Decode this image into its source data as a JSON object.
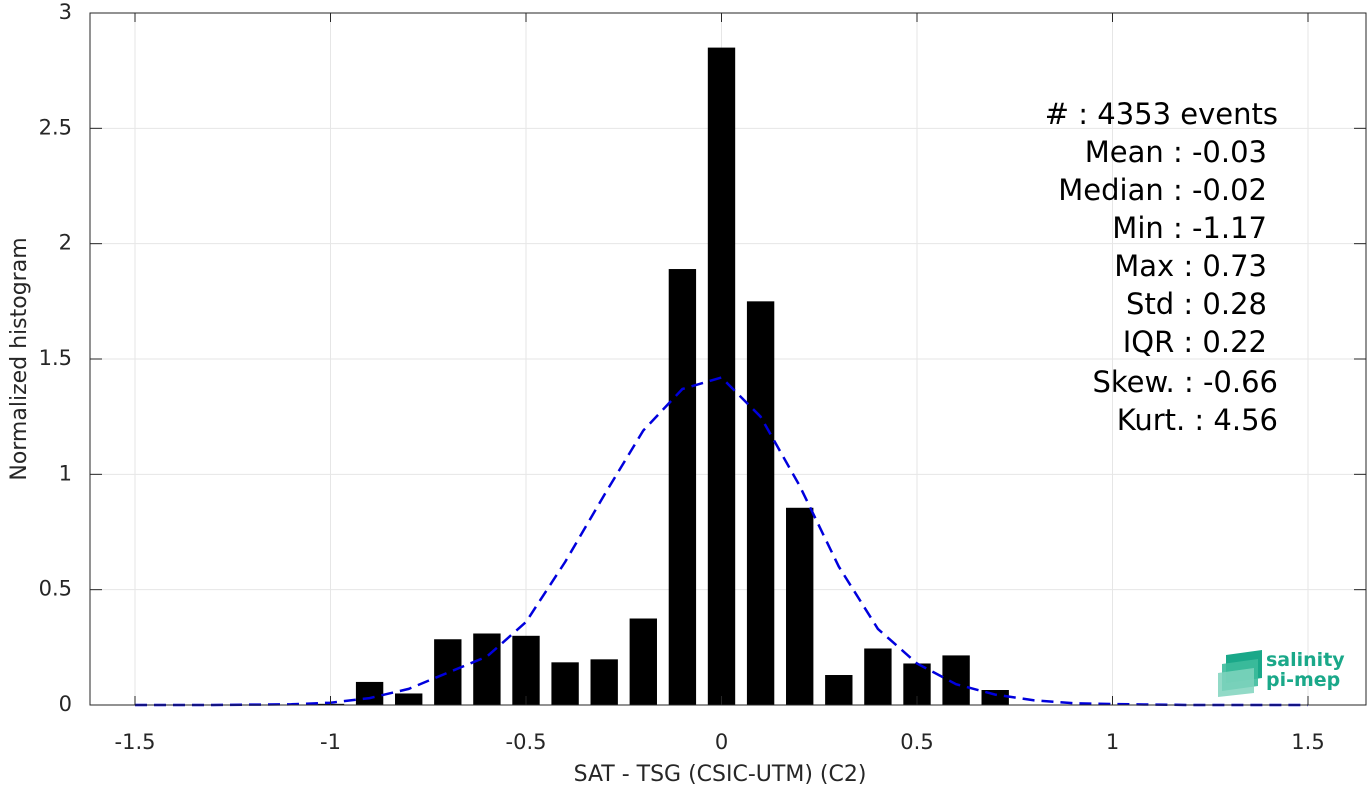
{
  "chart_data": {
    "type": "bar",
    "title": "",
    "xlabel": "SAT - TSG (CSIC-UTM) (C2)",
    "ylabel": "Normalized histogram",
    "xlim": [
      -1.5,
      1.5
    ],
    "ylim": [
      0,
      3
    ],
    "xticks": [
      "-1.5",
      "-1",
      "-0.5",
      "0",
      "0.5",
      "1",
      "1.5"
    ],
    "yticks": [
      "0",
      "0.5",
      "1",
      "1.5",
      "2",
      "2.5",
      "3"
    ],
    "grid": true,
    "bar_width": 0.07,
    "bars": {
      "x": [
        -1.0,
        -0.9,
        -0.8,
        -0.7,
        -0.6,
        -0.5,
        -0.4,
        -0.3,
        -0.2,
        -0.1,
        0.0,
        0.1,
        0.2,
        0.3,
        0.4,
        0.5,
        0.6,
        0.7
      ],
      "values": [
        0.005,
        0.1,
        0.05,
        0.285,
        0.31,
        0.3,
        0.185,
        0.198,
        0.375,
        1.89,
        2.85,
        1.75,
        0.855,
        0.13,
        0.245,
        0.18,
        0.215,
        0.065
      ],
      "color": "#000000"
    },
    "fit_curve": {
      "style": "dashed",
      "color": "#0000dd",
      "x": [
        -1.5,
        -1.3,
        -1.1,
        -1.0,
        -0.9,
        -0.8,
        -0.7,
        -0.6,
        -0.5,
        -0.4,
        -0.3,
        -0.2,
        -0.1,
        0.0,
        0.1,
        0.2,
        0.3,
        0.4,
        0.5,
        0.6,
        0.7,
        0.8,
        0.9,
        1.0,
        1.2,
        1.5
      ],
      "y": [
        0.0,
        0.0,
        0.003,
        0.01,
        0.03,
        0.07,
        0.14,
        0.21,
        0.36,
        0.62,
        0.91,
        1.19,
        1.37,
        1.42,
        1.25,
        0.95,
        0.6,
        0.33,
        0.18,
        0.09,
        0.045,
        0.02,
        0.008,
        0.004,
        0.0,
        0.0
      ]
    }
  },
  "stats": {
    "events": "#  : 4353 events",
    "mean": "Mean : -0.03",
    "median": "Median : -0.02",
    "min": "Min : -1.17",
    "max": "Max : 0.73",
    "std": "Std : 0.28",
    "iqr": "IQR : 0.22",
    "skew": "Skew. : -0.66",
    "kurt": "Kurt. : 4.56"
  },
  "logo": {
    "line1": "salinity",
    "line2": "pi-mep",
    "color": "#1aa889"
  }
}
